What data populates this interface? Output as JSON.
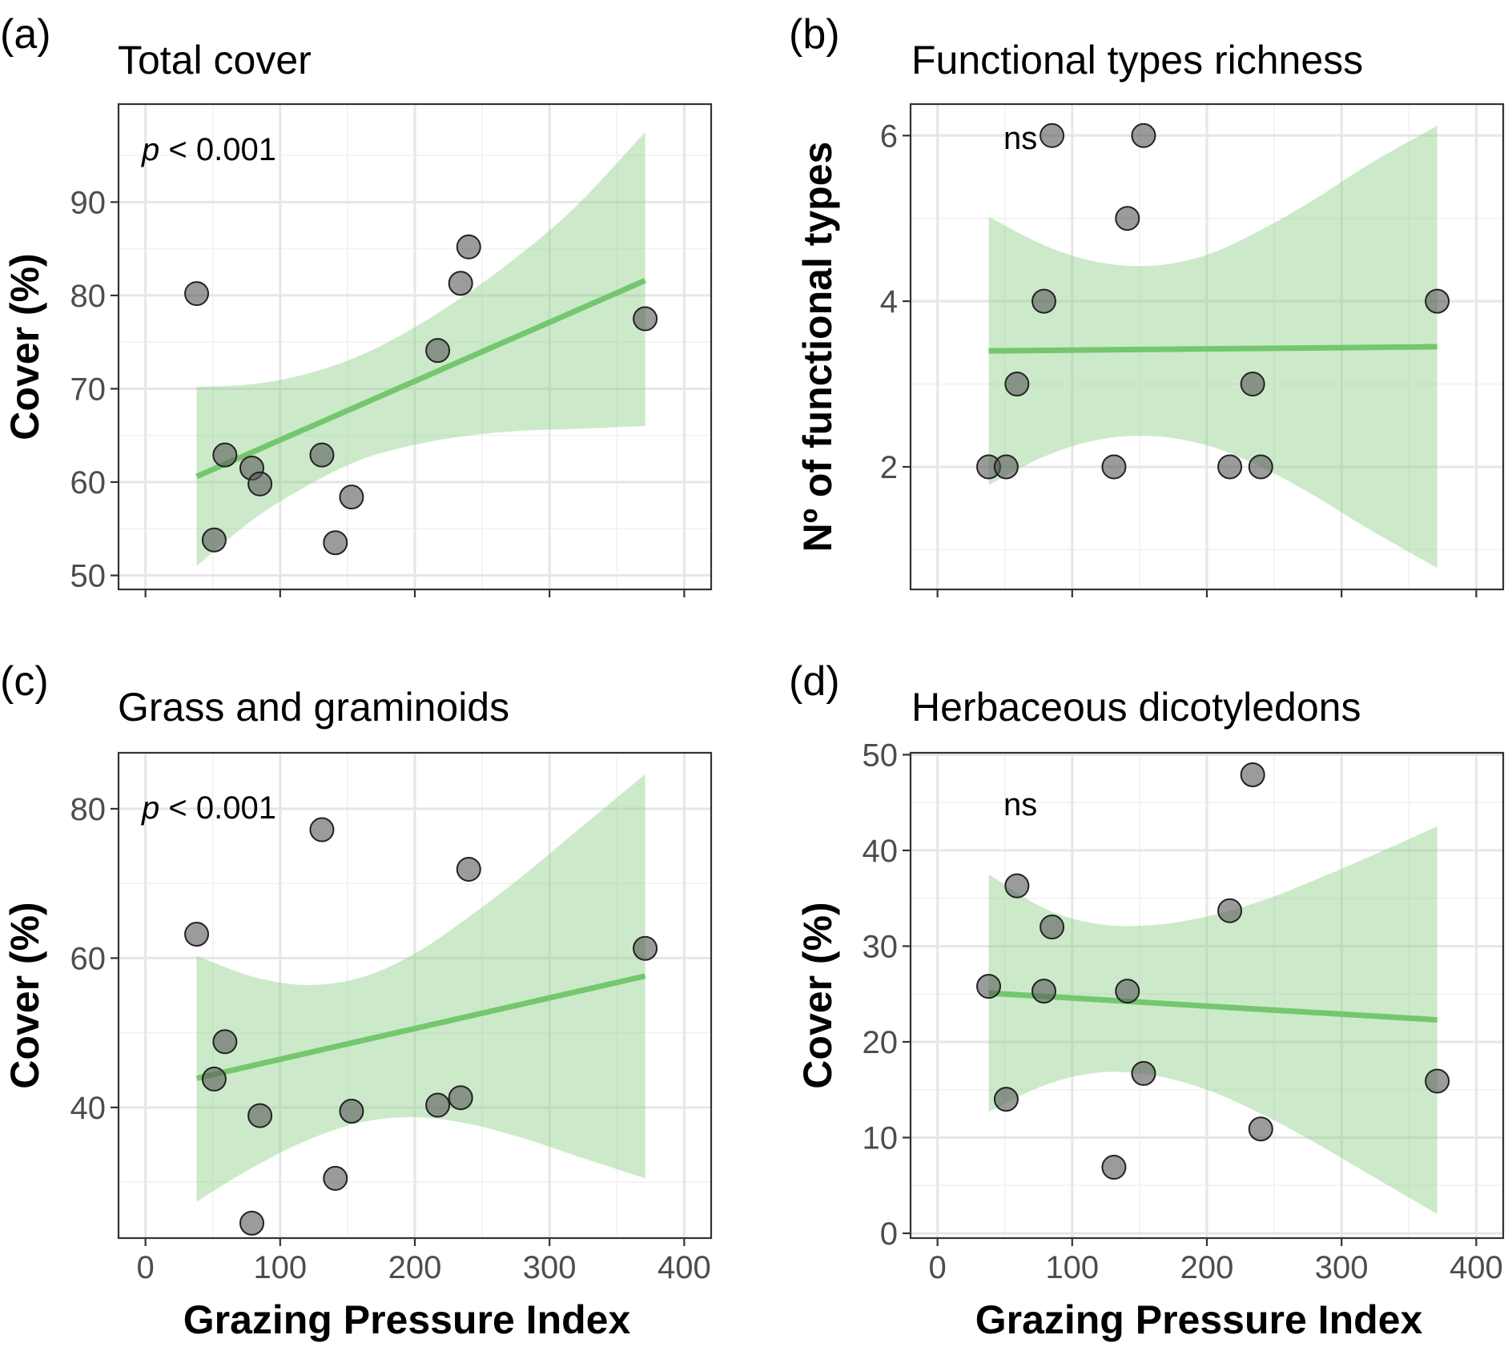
{
  "chart_data": [
    {
      "type": "scatter",
      "panel_letter": "(a)",
      "title": "Total cover",
      "xlabel": "",
      "ylabel": "Cover (%)",
      "annotation": {
        "italic": "p",
        "rest": " < 0.001"
      },
      "xlim": [
        -20,
        420
      ],
      "ylim": [
        48.5,
        100.5
      ],
      "x_ticks": [
        0,
        100,
        200,
        300,
        400
      ],
      "x_tick_labels": [],
      "y_ticks": [
        50,
        60,
        70,
        80,
        90
      ],
      "y_tick_labels": [
        "50",
        "60",
        "70",
        "80",
        "90"
      ],
      "points": [
        [
          38,
          80.2
        ],
        [
          51,
          53.8
        ],
        [
          59,
          62.9
        ],
        [
          79,
          61.5
        ],
        [
          85,
          59.8
        ],
        [
          131,
          62.9
        ],
        [
          141,
          53.5
        ],
        [
          153,
          58.4
        ],
        [
          217,
          74.1
        ],
        [
          234,
          81.3
        ],
        [
          240,
          85.2
        ],
        [
          371,
          77.5
        ]
      ],
      "fit": {
        "x": [
          38,
          371
        ],
        "y": [
          60.6,
          81.6
        ]
      },
      "ribbon": {
        "x": [
          38,
          80,
          120,
          160,
          200,
          240,
          280,
          320,
          371
        ],
        "lower": [
          51,
          56.0,
          59.6,
          62.4,
          64.0,
          65.0,
          65.5,
          65.7,
          66.0
        ],
        "upper": [
          70.2,
          70.5,
          71.6,
          73.6,
          76.6,
          80.3,
          84.6,
          89.6,
          97.5
        ]
      }
    },
    {
      "type": "scatter",
      "panel_letter": "(b)",
      "title": "Functional types richness",
      "xlabel": "",
      "ylabel": "Nº of functional types",
      "annotation": {
        "italic": "",
        "rest": "ns"
      },
      "xlim": [
        -20,
        420
      ],
      "ylim": [
        0.52,
        6.38
      ],
      "x_ticks": [
        0,
        100,
        200,
        300,
        400
      ],
      "x_tick_labels": [],
      "y_ticks": [
        2,
        4,
        6
      ],
      "y_tick_labels": [
        "2",
        "4",
        "6"
      ],
      "points": [
        [
          38,
          2
        ],
        [
          51,
          2
        ],
        [
          59,
          3
        ],
        [
          79,
          4
        ],
        [
          85,
          6
        ],
        [
          131,
          2
        ],
        [
          141,
          5
        ],
        [
          153,
          6
        ],
        [
          217,
          2
        ],
        [
          234,
          3
        ],
        [
          240,
          2
        ],
        [
          371,
          4
        ]
      ],
      "fit": {
        "x": [
          38,
          371
        ],
        "y": [
          3.4,
          3.45
        ]
      },
      "ribbon": {
        "x": [
          38,
          80,
          120,
          160,
          200,
          240,
          280,
          320,
          371
        ],
        "lower": [
          1.78,
          2.13,
          2.33,
          2.37,
          2.26,
          2.0,
          1.65,
          1.25,
          0.78
        ],
        "upper": [
          5.02,
          4.67,
          4.47,
          4.43,
          4.56,
          4.86,
          5.23,
          5.65,
          6.12
        ]
      }
    },
    {
      "type": "scatter",
      "panel_letter": "(c)",
      "title": "Grass and graminoids",
      "xlabel": "Grazing Pressure Index",
      "ylabel": "Cover (%)",
      "annotation": {
        "italic": "p",
        "rest": " < 0.001"
      },
      "xlim": [
        -20,
        420
      ],
      "ylim": [
        22.5,
        87.5
      ],
      "x_ticks": [
        0,
        100,
        200,
        300,
        400
      ],
      "x_tick_labels": [
        "0",
        "100",
        "200",
        "300",
        "400"
      ],
      "y_ticks": [
        40,
        60,
        80
      ],
      "y_tick_labels": [
        "40",
        "60",
        "80"
      ],
      "points": [
        [
          38,
          63.2
        ],
        [
          51,
          43.8
        ],
        [
          59,
          48.8
        ],
        [
          79,
          24.5
        ],
        [
          85,
          38.9
        ],
        [
          131,
          77.2
        ],
        [
          141,
          30.5
        ],
        [
          153,
          39.5
        ],
        [
          217,
          40.3
        ],
        [
          234,
          41.3
        ],
        [
          240,
          71.9
        ],
        [
          371,
          61.3
        ]
      ],
      "fit": {
        "x": [
          38,
          371
        ],
        "y": [
          43.9,
          57.6
        ]
      },
      "ribbon": {
        "x": [
          38,
          80,
          120,
          160,
          200,
          240,
          280,
          320,
          371
        ],
        "lower": [
          27.4,
          32.0,
          35.6,
          38.0,
          38.7,
          37.8,
          35.9,
          33.5,
          30.5
        ],
        "upper": [
          60.3,
          57.5,
          56.4,
          57.4,
          60.6,
          65.5,
          71.0,
          77.0,
          84.6
        ]
      }
    },
    {
      "type": "scatter",
      "panel_letter": "(d)",
      "title": "Herbaceous dicotyledons",
      "xlabel": "Grazing Pressure Index",
      "ylabel": "Cover (%)",
      "annotation": {
        "italic": "",
        "rest": "ns"
      },
      "xlim": [
        -20,
        420
      ],
      "ylim": [
        -0.5,
        50.2
      ],
      "x_ticks": [
        0,
        100,
        200,
        300,
        400
      ],
      "x_tick_labels": [
        "0",
        "100",
        "200",
        "300",
        "400"
      ],
      "y_ticks": [
        0,
        10,
        20,
        30,
        40,
        50
      ],
      "y_tick_labels": [
        "0",
        "10",
        "20",
        "30",
        "40",
        "50"
      ],
      "points": [
        [
          38,
          25.8
        ],
        [
          51,
          14.0
        ],
        [
          59,
          36.3
        ],
        [
          79,
          25.3
        ],
        [
          85,
          32.0
        ],
        [
          131,
          6.9
        ],
        [
          141,
          25.3
        ],
        [
          153,
          16.7
        ],
        [
          217,
          33.7
        ],
        [
          234,
          47.9
        ],
        [
          240,
          10.9
        ],
        [
          371,
          15.9
        ]
      ],
      "fit": {
        "x": [
          38,
          371
        ],
        "y": [
          25.1,
          22.3
        ]
      },
      "ribbon": {
        "x": [
          38,
          80,
          120,
          160,
          200,
          240,
          280,
          320,
          371
        ],
        "lower": [
          12.7,
          15.5,
          16.8,
          16.5,
          15.0,
          12.5,
          9.5,
          6.2,
          2.0
        ],
        "upper": [
          37.5,
          33.9,
          32.3,
          32.2,
          33.1,
          34.7,
          36.9,
          39.3,
          42.5
        ]
      }
    }
  ]
}
